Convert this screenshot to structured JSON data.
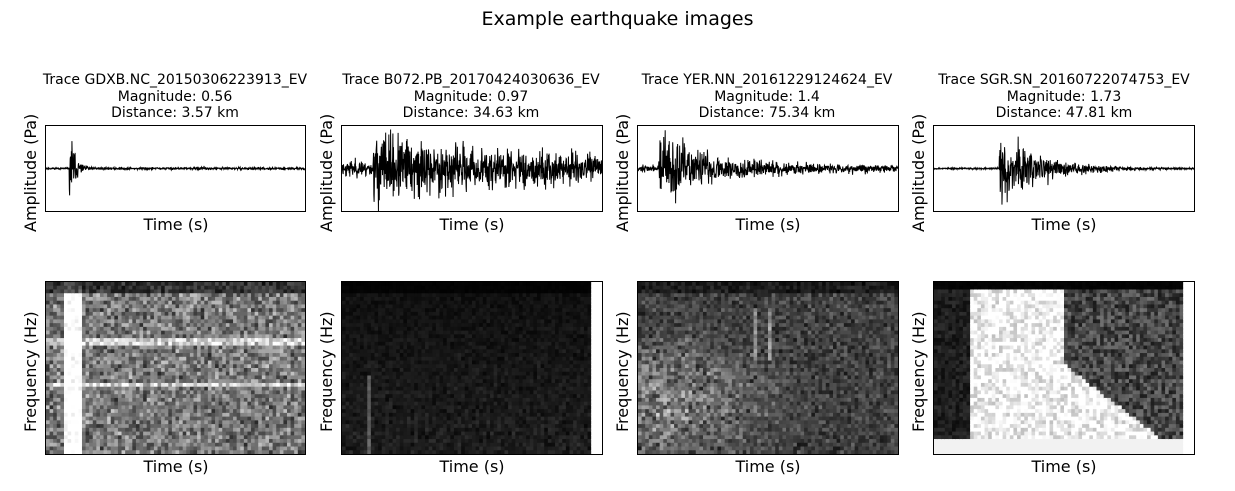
{
  "figure": {
    "title": "Example earthquake images"
  },
  "chart_data": [
    {
      "type": "line",
      "title": "Trace GDXB.NC_20150306223913_EV",
      "title_lines": [
        "Trace GDXB.NC_20150306223913_EV",
        "Magnitude: 0.56",
        "Distance: 3.57 km"
      ],
      "magnitude": 0.56,
      "distance_km": 3.57,
      "waveform": {
        "xlabel": "Time (s)",
        "ylabel": "Amplitude (Pa)",
        "ticks": "hidden"
      },
      "spectrogram": {
        "type": "heatmap",
        "xlabel": "Time (s)",
        "ylabel": "Frequency (Hz)",
        "colormap": "gray",
        "ticks": "hidden"
      }
    },
    {
      "type": "line",
      "title": "Trace B072.PB_20170424030636_EV",
      "title_lines": [
        "Trace B072.PB_20170424030636_EV",
        "Magnitude: 0.97",
        "Distance: 34.63 km"
      ],
      "magnitude": 0.97,
      "distance_km": 34.63,
      "waveform": {
        "xlabel": "Time (s)",
        "ylabel": "Amplitude (Pa)",
        "ticks": "hidden"
      },
      "spectrogram": {
        "type": "heatmap",
        "xlabel": "Time (s)",
        "ylabel": "Frequency (Hz)",
        "colormap": "gray",
        "ticks": "hidden"
      }
    },
    {
      "type": "line",
      "title": "Trace YER.NN_20161229124624_EV",
      "title_lines": [
        "Trace YER.NN_20161229124624_EV",
        "Magnitude: 1.4",
        "Distance: 75.34 km"
      ],
      "magnitude": 1.4,
      "distance_km": 75.34,
      "waveform": {
        "xlabel": "Time (s)",
        "ylabel": "Amplitude (Pa)",
        "ticks": "hidden"
      },
      "spectrogram": {
        "type": "heatmap",
        "xlabel": "Time (s)",
        "ylabel": "Frequency (Hz)",
        "colormap": "gray",
        "ticks": "hidden"
      }
    },
    {
      "type": "line",
      "title": "Trace SGR.SN_20160722074753_EV",
      "title_lines": [
        "Trace SGR.SN_20160722074753_EV",
        "Magnitude: 1.73",
        "Distance: 47.81 km"
      ],
      "magnitude": 1.73,
      "distance_km": 47.81,
      "waveform": {
        "xlabel": "Time (s)",
        "ylabel": "Amplitude (Pa)",
        "ticks": "hidden"
      },
      "spectrogram": {
        "type": "heatmap",
        "xlabel": "Time (s)",
        "ylabel": "Frequency (Hz)",
        "colormap": "gray",
        "ticks": "hidden"
      }
    }
  ]
}
